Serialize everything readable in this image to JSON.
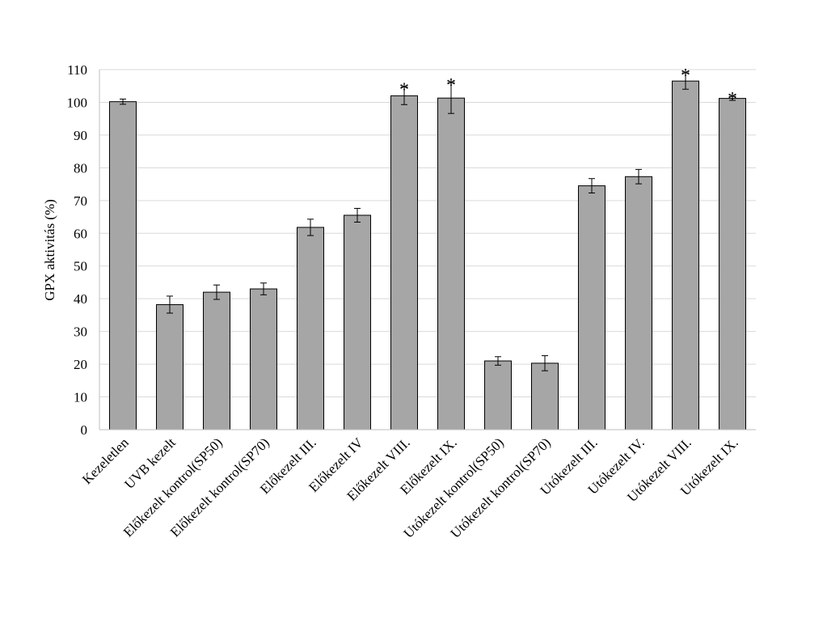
{
  "chart_data": {
    "type": "bar",
    "title": "",
    "xlabel": "",
    "ylabel": "GPX aktivitás (%)",
    "ylim": [
      0,
      110
    ],
    "yticks": [
      0,
      10,
      20,
      30,
      40,
      50,
      60,
      70,
      80,
      90,
      100,
      110
    ],
    "grid": true,
    "categories": [
      "Kezeletlen",
      "UVB kezelt",
      "Előkezelt kontrol(SP50)",
      "Előkezelt kontrol(SP70)",
      "Előkezelt III.",
      "Előkezelt IV",
      "Előkezelt VIII.",
      "Előkezelt IX.",
      "Utókezelt kontrol(SP50)",
      "Utókezelt kontrol(SP70)",
      "Utókezelt III.",
      "Utókezelt IV.",
      "Utókezelt VIII.",
      "Utókezelt IX."
    ],
    "values": [
      100.2,
      38.2,
      42.0,
      43.0,
      61.8,
      65.5,
      102.0,
      101.3,
      21.0,
      20.3,
      74.5,
      77.3,
      106.5,
      101.2
    ],
    "errors": [
      0.8,
      2.6,
      2.2,
      1.8,
      2.5,
      2.1,
      2.7,
      4.7,
      1.3,
      2.3,
      2.2,
      2.2,
      2.5,
      0.6
    ],
    "significant": [
      false,
      false,
      false,
      false,
      false,
      false,
      true,
      true,
      false,
      false,
      false,
      false,
      true,
      true
    ],
    "significance_marker": "*",
    "bar_color": "#a6a6a6",
    "bar_edge_color": "#000000",
    "grid_color": "#d9d9d9"
  }
}
